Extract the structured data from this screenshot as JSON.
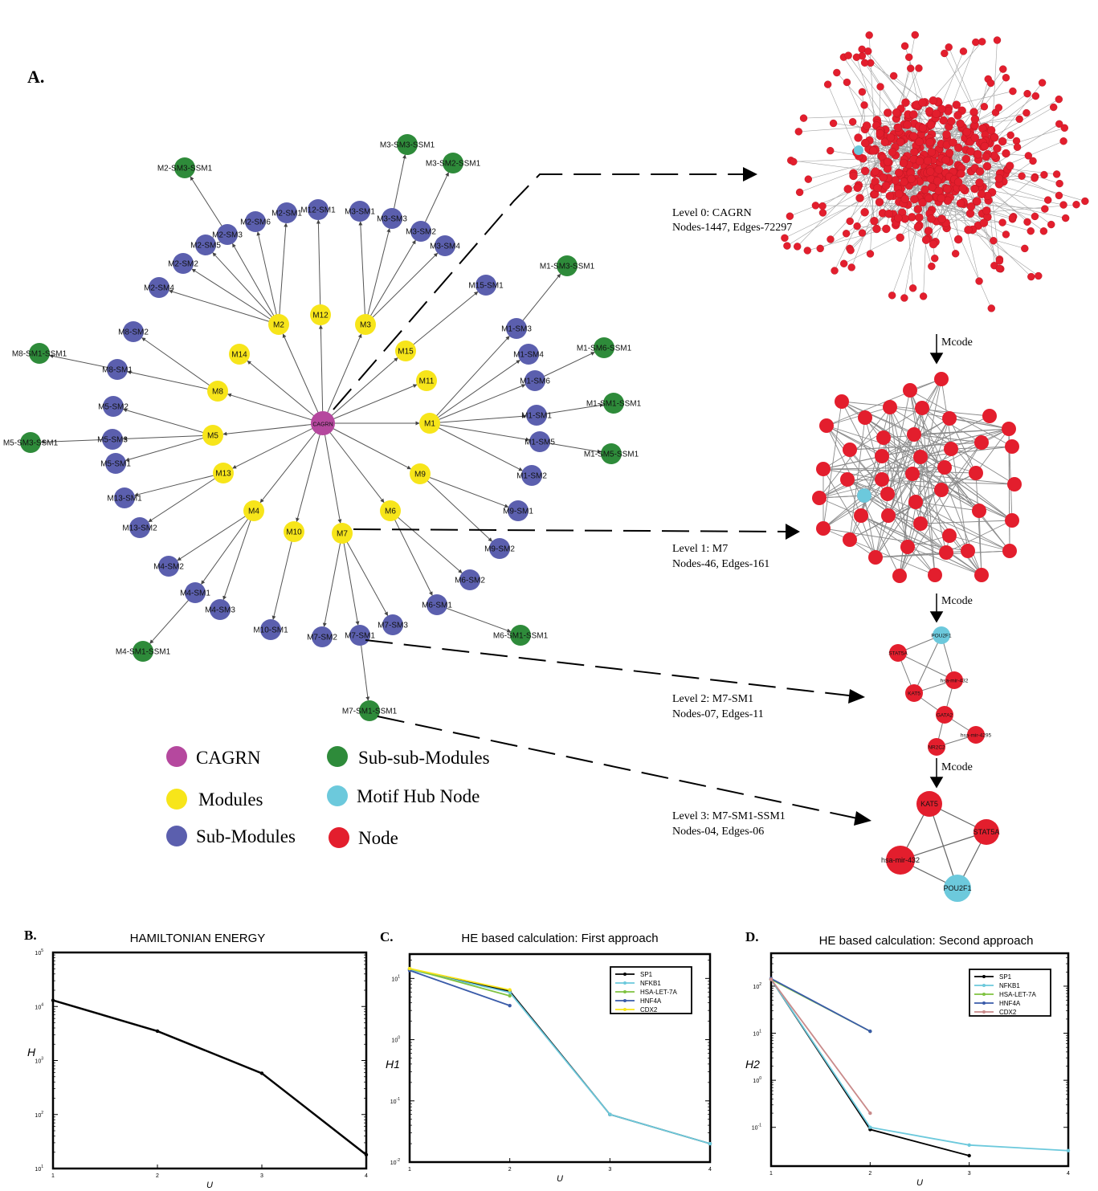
{
  "panel_a": {
    "label": "A.",
    "center": {
      "name": "CAGRN"
    },
    "modules": [
      "M1",
      "M2",
      "M3",
      "M4",
      "M5",
      "M6",
      "M7",
      "M8",
      "M9",
      "M10",
      "M11",
      "M12",
      "M13",
      "M14",
      "M15"
    ],
    "submodules": [
      "M1-SM1",
      "M1-SM2",
      "M1-SM3",
      "M1-SM4",
      "M1-SM5",
      "M1-SM6",
      "M2-SM1",
      "M2-SM2",
      "M2-SM3",
      "M2-SM4",
      "M2-SM5",
      "M2-SM6",
      "M3-SM1",
      "M3-SM2",
      "M3-SM3",
      "M3-SM4",
      "M4-SM1",
      "M4-SM2",
      "M4-SM3",
      "M5-SM1",
      "M5-SM2",
      "M5-SM3",
      "M6-SM1",
      "M6-SM2",
      "M7-SM1",
      "M7-SM2",
      "M7-SM3",
      "M8-SM1",
      "M8-SM2",
      "M9-SM1",
      "M9-SM2",
      "M10-SM1",
      "M12-SM1",
      "M13-SM1",
      "M13-SM2",
      "M15-SM1"
    ],
    "subsubmodules": [
      "M1-SM1-SSM1",
      "M1-SM3-SSM1",
      "M1-SM5-SSM1",
      "M1-SM6-SSM1",
      "M2-SM3-SSM1",
      "M3-SM2-SSM1",
      "M3-SM3-SSM1",
      "M4-SM1-SSM1",
      "M5-SM3-SSM1",
      "M6-SM1-SSM1",
      "M7-SM1-SSM1",
      "M8-SM1-SSM1"
    ],
    "legend": [
      {
        "label": "CAGRN",
        "color": "#b5489e"
      },
      {
        "label": "Sub-sub-Modules",
        "color": "#2e8b3a"
      },
      {
        "label": "Modules",
        "color": "#f7e51a"
      },
      {
        "label": "Motif Hub Node",
        "color": "#6cc9dc"
      },
      {
        "label": "Sub-Modules",
        "color": "#5b5fae"
      },
      {
        "label": "Node",
        "color": "#e31e2d"
      }
    ],
    "levels": [
      {
        "title": "Level 0: CAGRN",
        "stats": "Nodes-1447, Edges-72297"
      },
      {
        "title": "Level 1:  M7",
        "stats": "Nodes-46, Edges-161"
      },
      {
        "title": "Level 2: M7-SM1",
        "stats": "Nodes-07, Edges-11"
      },
      {
        "title": "Level 3: M7-SM1-SSM1",
        "stats": "Nodes-04, Edges-06"
      }
    ],
    "mcode_label": "Mcode",
    "level2_nodes": [
      "POU2F1",
      "STAT5A",
      "hsa-mir-432",
      "KAT5",
      "GATA2",
      "hsa-mir-4295",
      "NR2C2"
    ],
    "level3_nodes": [
      "KAT5",
      "STAT5A",
      "hsa-mir-432",
      "POU2F1"
    ]
  },
  "charts": {
    "chart_data": [
      {
        "panel": "B.",
        "type": "line",
        "title": "HAMILTONIAN ENERGY",
        "xlabel": "U",
        "ylabel": "H",
        "yscale": "log",
        "xlim": [
          1,
          4
        ],
        "ylim": [
          10,
          100000
        ],
        "xticks": [
          "1",
          "2",
          "3",
          "4"
        ],
        "series": [
          {
            "color": "#000000",
            "x": [
              1,
              2,
              3,
              4
            ],
            "y": [
              13000,
              3500,
              580,
              18
            ]
          }
        ]
      },
      {
        "panel": "C.",
        "type": "line",
        "title": "HE based calculation: First approach",
        "xlabel": "U",
        "ylabel": "H1",
        "yscale": "log",
        "xlim": [
          1,
          4
        ],
        "xticks": [
          "1",
          "2",
          "3",
          "4"
        ],
        "legend_position": "top-right",
        "series": [
          {
            "name": "SP1",
            "color": "#000000",
            "x": [
              1,
              2,
              3,
              4
            ],
            "y": [
              14,
              6.2,
              0.06,
              0.02
            ]
          },
          {
            "name": "NFKB1",
            "color": "#6cc9dc",
            "x": [
              1,
              2,
              3,
              4
            ],
            "y": [
              14,
              5.9,
              0.06,
              0.02
            ]
          },
          {
            "name": "HSA-LET-7A",
            "color": "#7fc241",
            "x": [
              1,
              2
            ],
            "y": [
              14.5,
              5.2
            ]
          },
          {
            "name": "HNF4A",
            "color": "#3a5ba9",
            "x": [
              1,
              2
            ],
            "y": [
              13.5,
              3.6
            ]
          },
          {
            "name": "CDX2",
            "color": "#f7e51a",
            "x": [
              1,
              2
            ],
            "y": [
              14.5,
              6.5
            ]
          }
        ]
      },
      {
        "panel": "D.",
        "type": "line",
        "title": "HE based calculation: Second approach",
        "xlabel": "U",
        "ylabel": "H2",
        "yscale": "log",
        "xlim": [
          1,
          4
        ],
        "xticks": [
          "1",
          "2",
          "3",
          "4"
        ],
        "legend_position": "top-right",
        "series": [
          {
            "name": "SP1",
            "color": "#000000",
            "x": [
              1,
              2,
              3
            ],
            "y": [
              140,
              0.09,
              0.025
            ]
          },
          {
            "name": "NFKB1",
            "color": "#6cc9dc",
            "x": [
              1,
              2,
              3,
              4
            ],
            "y": [
              140,
              0.1,
              0.042,
              0.032
            ]
          },
          {
            "name": "HSA-LET-7A",
            "color": "#7fc241",
            "x": [
              1,
              2
            ],
            "y": [
              140,
              11
            ]
          },
          {
            "name": "HNF4A",
            "color": "#3a5ba9",
            "x": [
              1,
              2
            ],
            "y": [
              145,
              11
            ]
          },
          {
            "name": "CDX2",
            "color": "#c98a8a",
            "x": [
              1,
              2
            ],
            "y": [
              140,
              0.2
            ]
          }
        ]
      }
    ]
  }
}
